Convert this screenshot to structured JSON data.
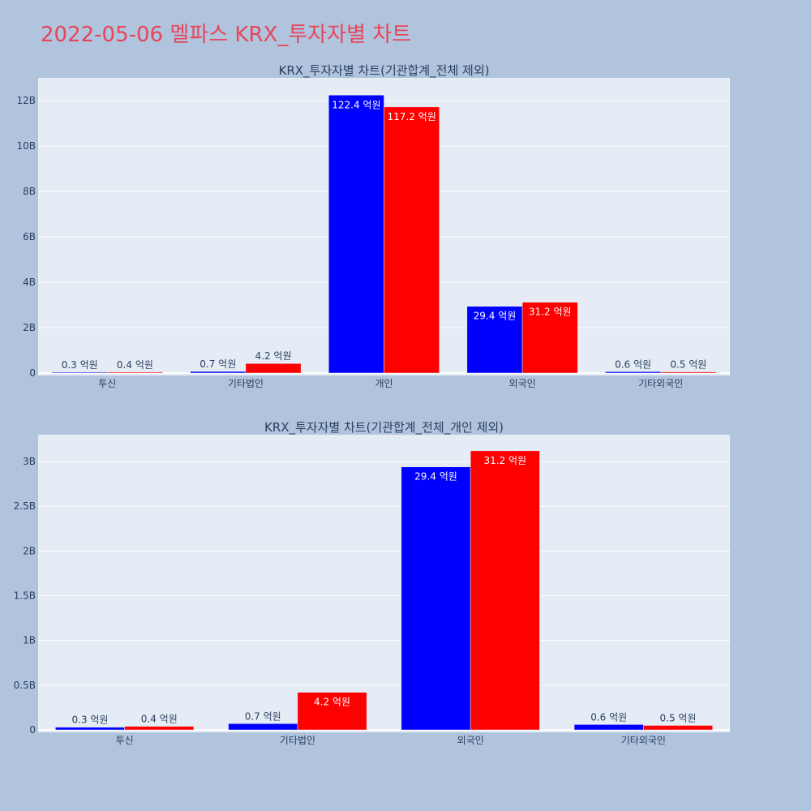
{
  "page": {
    "title": "2022-05-06 멜파스 KRX_투자자별 차트"
  },
  "colors": {
    "background": "#b0c4de",
    "plot_bg": "#e5ecf6",
    "buy": "#0000ff",
    "sell": "#ff0000",
    "title": "#e8455a"
  },
  "chart_data": [
    {
      "type": "bar",
      "title": "KRX_투자자별 차트(기관합계_전체 제외)",
      "categories": [
        "투신",
        "기타법인",
        "개인",
        "외국인",
        "기타외국인"
      ],
      "ylim": [
        0,
        13000000000
      ],
      "yticks": [
        0,
        2000000000,
        4000000000,
        6000000000,
        8000000000,
        10000000000,
        12000000000
      ],
      "ytick_labels": [
        "0",
        "2B",
        "4B",
        "6B",
        "8B",
        "10B",
        "12B"
      ],
      "grid": true,
      "series": [
        {
          "color": "#0000ff",
          "values": [
            30000000,
            70000000,
            12240000000,
            2940000000,
            60000000
          ],
          "labels": [
            "0.3 억원",
            "0.7 억원",
            "122.4 억원",
            "29.4 억원",
            "0.6 억원"
          ]
        },
        {
          "color": "#ff0000",
          "values": [
            40000000,
            420000000,
            11720000000,
            3120000000,
            50000000
          ],
          "labels": [
            "0.4 억원",
            "4.2 억원",
            "117.2 억원",
            "31.2 억원",
            "0.5 억원"
          ]
        }
      ]
    },
    {
      "type": "bar",
      "title": "KRX_투자자별 차트(기관합계_전체_개인 제외)",
      "categories": [
        "투신",
        "기타법인",
        "외국인",
        "기타외국인"
      ],
      "ylim": [
        0,
        3300000000
      ],
      "yticks": [
        0,
        500000000,
        1000000000,
        1500000000,
        2000000000,
        2500000000,
        3000000000
      ],
      "ytick_labels": [
        "0",
        "0.5B",
        "1B",
        "1.5B",
        "2B",
        "2.5B",
        "3B"
      ],
      "grid": true,
      "series": [
        {
          "color": "#0000ff",
          "values": [
            30000000,
            70000000,
            2940000000,
            60000000
          ],
          "labels": [
            "0.3 억원",
            "0.7 억원",
            "29.4 억원",
            "0.6 억원"
          ]
        },
        {
          "color": "#ff0000",
          "values": [
            40000000,
            420000000,
            3120000000,
            50000000
          ],
          "labels": [
            "0.4 억원",
            "4.2 억원",
            "31.2 억원",
            "0.5 억원"
          ]
        }
      ]
    }
  ]
}
